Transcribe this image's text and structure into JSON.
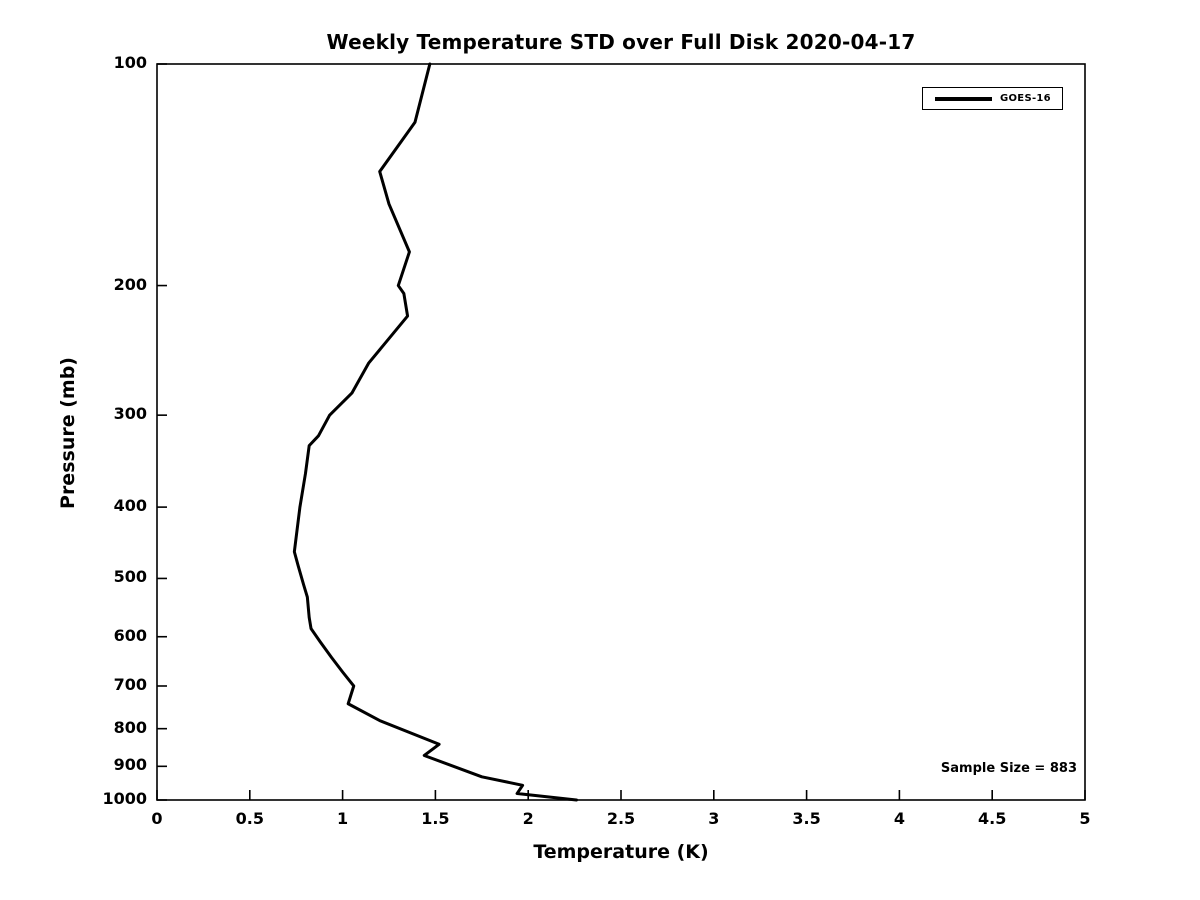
{
  "chart_data": {
    "type": "line",
    "title": "Weekly Temperature STD over Full Disk 2020-04-17",
    "xlabel": "Temperature (K)",
    "ylabel": "Pressure (mb)",
    "x_axis": {
      "min": 0,
      "max": 5,
      "scale": "linear",
      "ticks": [
        0,
        0.5,
        1,
        1.5,
        2,
        2.5,
        3,
        3.5,
        4,
        4.5,
        5
      ],
      "tick_labels": [
        "0",
        "0.5",
        "1",
        "1.5",
        "2",
        "2.5",
        "3",
        "3.5",
        "4",
        "4.5",
        "5"
      ]
    },
    "y_axis": {
      "min": 100,
      "max": 1000,
      "scale": "log",
      "inverted": true,
      "ticks": [
        100,
        200,
        300,
        400,
        500,
        600,
        700,
        800,
        900,
        1000
      ],
      "tick_labels": [
        "100",
        "200",
        "300",
        "400",
        "500",
        "600",
        "700",
        "800",
        "900",
        "1000"
      ]
    },
    "grid": false,
    "legend": {
      "position": "upper right",
      "entries": [
        {
          "label": "GOES-16",
          "color": "#000000",
          "line_width": 3
        }
      ]
    },
    "annotation": "Sample Size = 883",
    "series": [
      {
        "name": "GOES-16",
        "pressure_mb": [
          100,
          120,
          140,
          155,
          180,
          200,
          205,
          220,
          255,
          280,
          300,
          320,
          330,
          360,
          400,
          460,
          480,
          510,
          530,
          565,
          585,
          610,
          640,
          670,
          700,
          740,
          780,
          840,
          870,
          930,
          955,
          980,
          1000
        ],
        "std_k": [
          1.47,
          1.39,
          1.2,
          1.25,
          1.36,
          1.3,
          1.33,
          1.35,
          1.14,
          1.05,
          0.93,
          0.87,
          0.82,
          0.8,
          0.77,
          0.74,
          0.76,
          0.79,
          0.81,
          0.82,
          0.83,
          0.88,
          0.94,
          1.0,
          1.06,
          1.03,
          1.2,
          1.52,
          1.44,
          1.75,
          1.97,
          1.94,
          2.26
        ]
      }
    ]
  },
  "colors": {
    "background": "#ffffff",
    "frame": "#000000",
    "line": "#000000",
    "text": "#000000"
  }
}
